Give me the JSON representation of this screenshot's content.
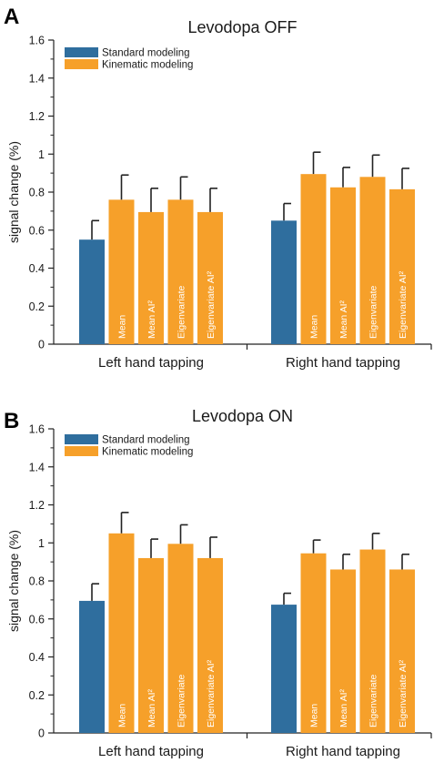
{
  "figure": {
    "panels": [
      "A",
      "B"
    ]
  },
  "chart_data": [
    {
      "type": "bar",
      "panel": "A",
      "title": "Levodopa OFF",
      "ylabel": "signal change (%)",
      "ylim": [
        0,
        1.6
      ],
      "yticks": [
        "0",
        "0.2",
        "0.4",
        "0.6",
        "0.8",
        "1",
        "1.2",
        "1.4",
        "1.6"
      ],
      "categories": [
        "Left hand tapping",
        "Right hand tapping"
      ],
      "legend": [
        "Standard modeling",
        "Kinematic modeling"
      ],
      "legend_position": "top-left",
      "bar_labels": [
        "",
        "Mean",
        "Mean AI²",
        "Eigenvariate",
        "Eigenvariate AI²"
      ],
      "colors": {
        "standard": "#2f6e9e",
        "kinematic": "#f6a02a"
      },
      "series": [
        {
          "name": "Standard modeling",
          "values": [
            0.55,
            0.65
          ],
          "errors": [
            0.1,
            0.09
          ]
        },
        {
          "name": "Mean",
          "values": [
            0.76,
            0.895
          ],
          "errors": [
            0.13,
            0.115
          ]
        },
        {
          "name": "Mean AI²",
          "values": [
            0.695,
            0.825
          ],
          "errors": [
            0.125,
            0.105
          ]
        },
        {
          "name": "Eigenvariate",
          "values": [
            0.76,
            0.88
          ],
          "errors": [
            0.12,
            0.115
          ]
        },
        {
          "name": "Eigenvariate AI²",
          "values": [
            0.695,
            0.815
          ],
          "errors": [
            0.125,
            0.11
          ]
        }
      ]
    },
    {
      "type": "bar",
      "panel": "B",
      "title": "Levodopa ON",
      "ylabel": "signal change (%)",
      "ylim": [
        0,
        1.6
      ],
      "yticks": [
        "0",
        "0.2",
        "0.4",
        "0.6",
        "0.8",
        "1",
        "1.2",
        "1.4",
        "1.6"
      ],
      "categories": [
        "Left hand tapping",
        "Right hand tapping"
      ],
      "legend": [
        "Standard modeling",
        "Kinematic modeling"
      ],
      "legend_position": "top-left",
      "bar_labels": [
        "",
        "Mean",
        "Mean AI²",
        "Eigenvariate",
        "Eigenvariate AI²"
      ],
      "colors": {
        "standard": "#2f6e9e",
        "kinematic": "#f6a02a"
      },
      "series": [
        {
          "name": "Standard modeling",
          "values": [
            0.695,
            0.675
          ],
          "errors": [
            0.09,
            0.06
          ]
        },
        {
          "name": "Mean",
          "values": [
            1.05,
            0.945
          ],
          "errors": [
            0.11,
            0.07
          ]
        },
        {
          "name": "Mean AI²",
          "values": [
            0.92,
            0.86
          ],
          "errors": [
            0.1,
            0.08
          ]
        },
        {
          "name": "Eigenvariate",
          "values": [
            0.995,
            0.965
          ],
          "errors": [
            0.1,
            0.085
          ]
        },
        {
          "name": "Eigenvariate AI²",
          "values": [
            0.92,
            0.86
          ],
          "errors": [
            0.11,
            0.08
          ]
        }
      ]
    }
  ]
}
